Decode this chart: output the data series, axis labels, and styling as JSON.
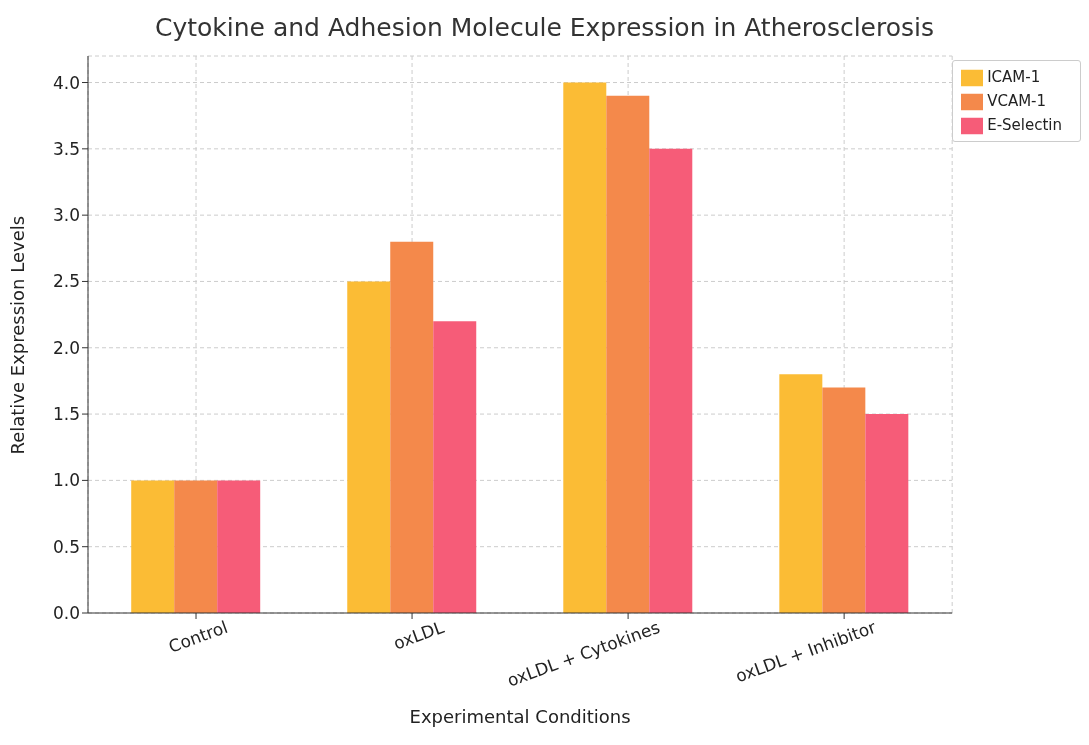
{
  "chart_data": {
    "type": "bar",
    "title": "Cytokine and Adhesion Molecule Expression in Atherosclerosis",
    "xlabel": "Experimental Conditions",
    "ylabel": "Relative Expression Levels",
    "categories": [
      "Control",
      "oxLDL",
      "oxLDL + Cytokines",
      "oxLDL + Inhibitor"
    ],
    "series": [
      {
        "name": "ICAM-1",
        "color": "#fbbc35",
        "values": [
          1.0,
          2.5,
          4.0,
          1.8
        ]
      },
      {
        "name": "VCAM-1",
        "color": "#f4894b",
        "values": [
          1.0,
          2.8,
          3.9,
          1.7
        ]
      },
      {
        "name": "E-Selectin",
        "color": "#f65c78",
        "values": [
          1.0,
          2.2,
          3.5,
          1.5
        ]
      }
    ],
    "ylim": [
      0,
      4.2
    ],
    "yticks": [
      {
        "value": 0,
        "label": "0.0"
      },
      0.5,
      {
        "value": 1,
        "label": "1.0"
      },
      1.5,
      {
        "value": 2,
        "label": "2.0"
      },
      2.5,
      {
        "value": 3,
        "label": "3.0"
      },
      3.5,
      {
        "value": 4,
        "label": "4.0"
      }
    ],
    "grid": true,
    "legend": "top right"
  }
}
